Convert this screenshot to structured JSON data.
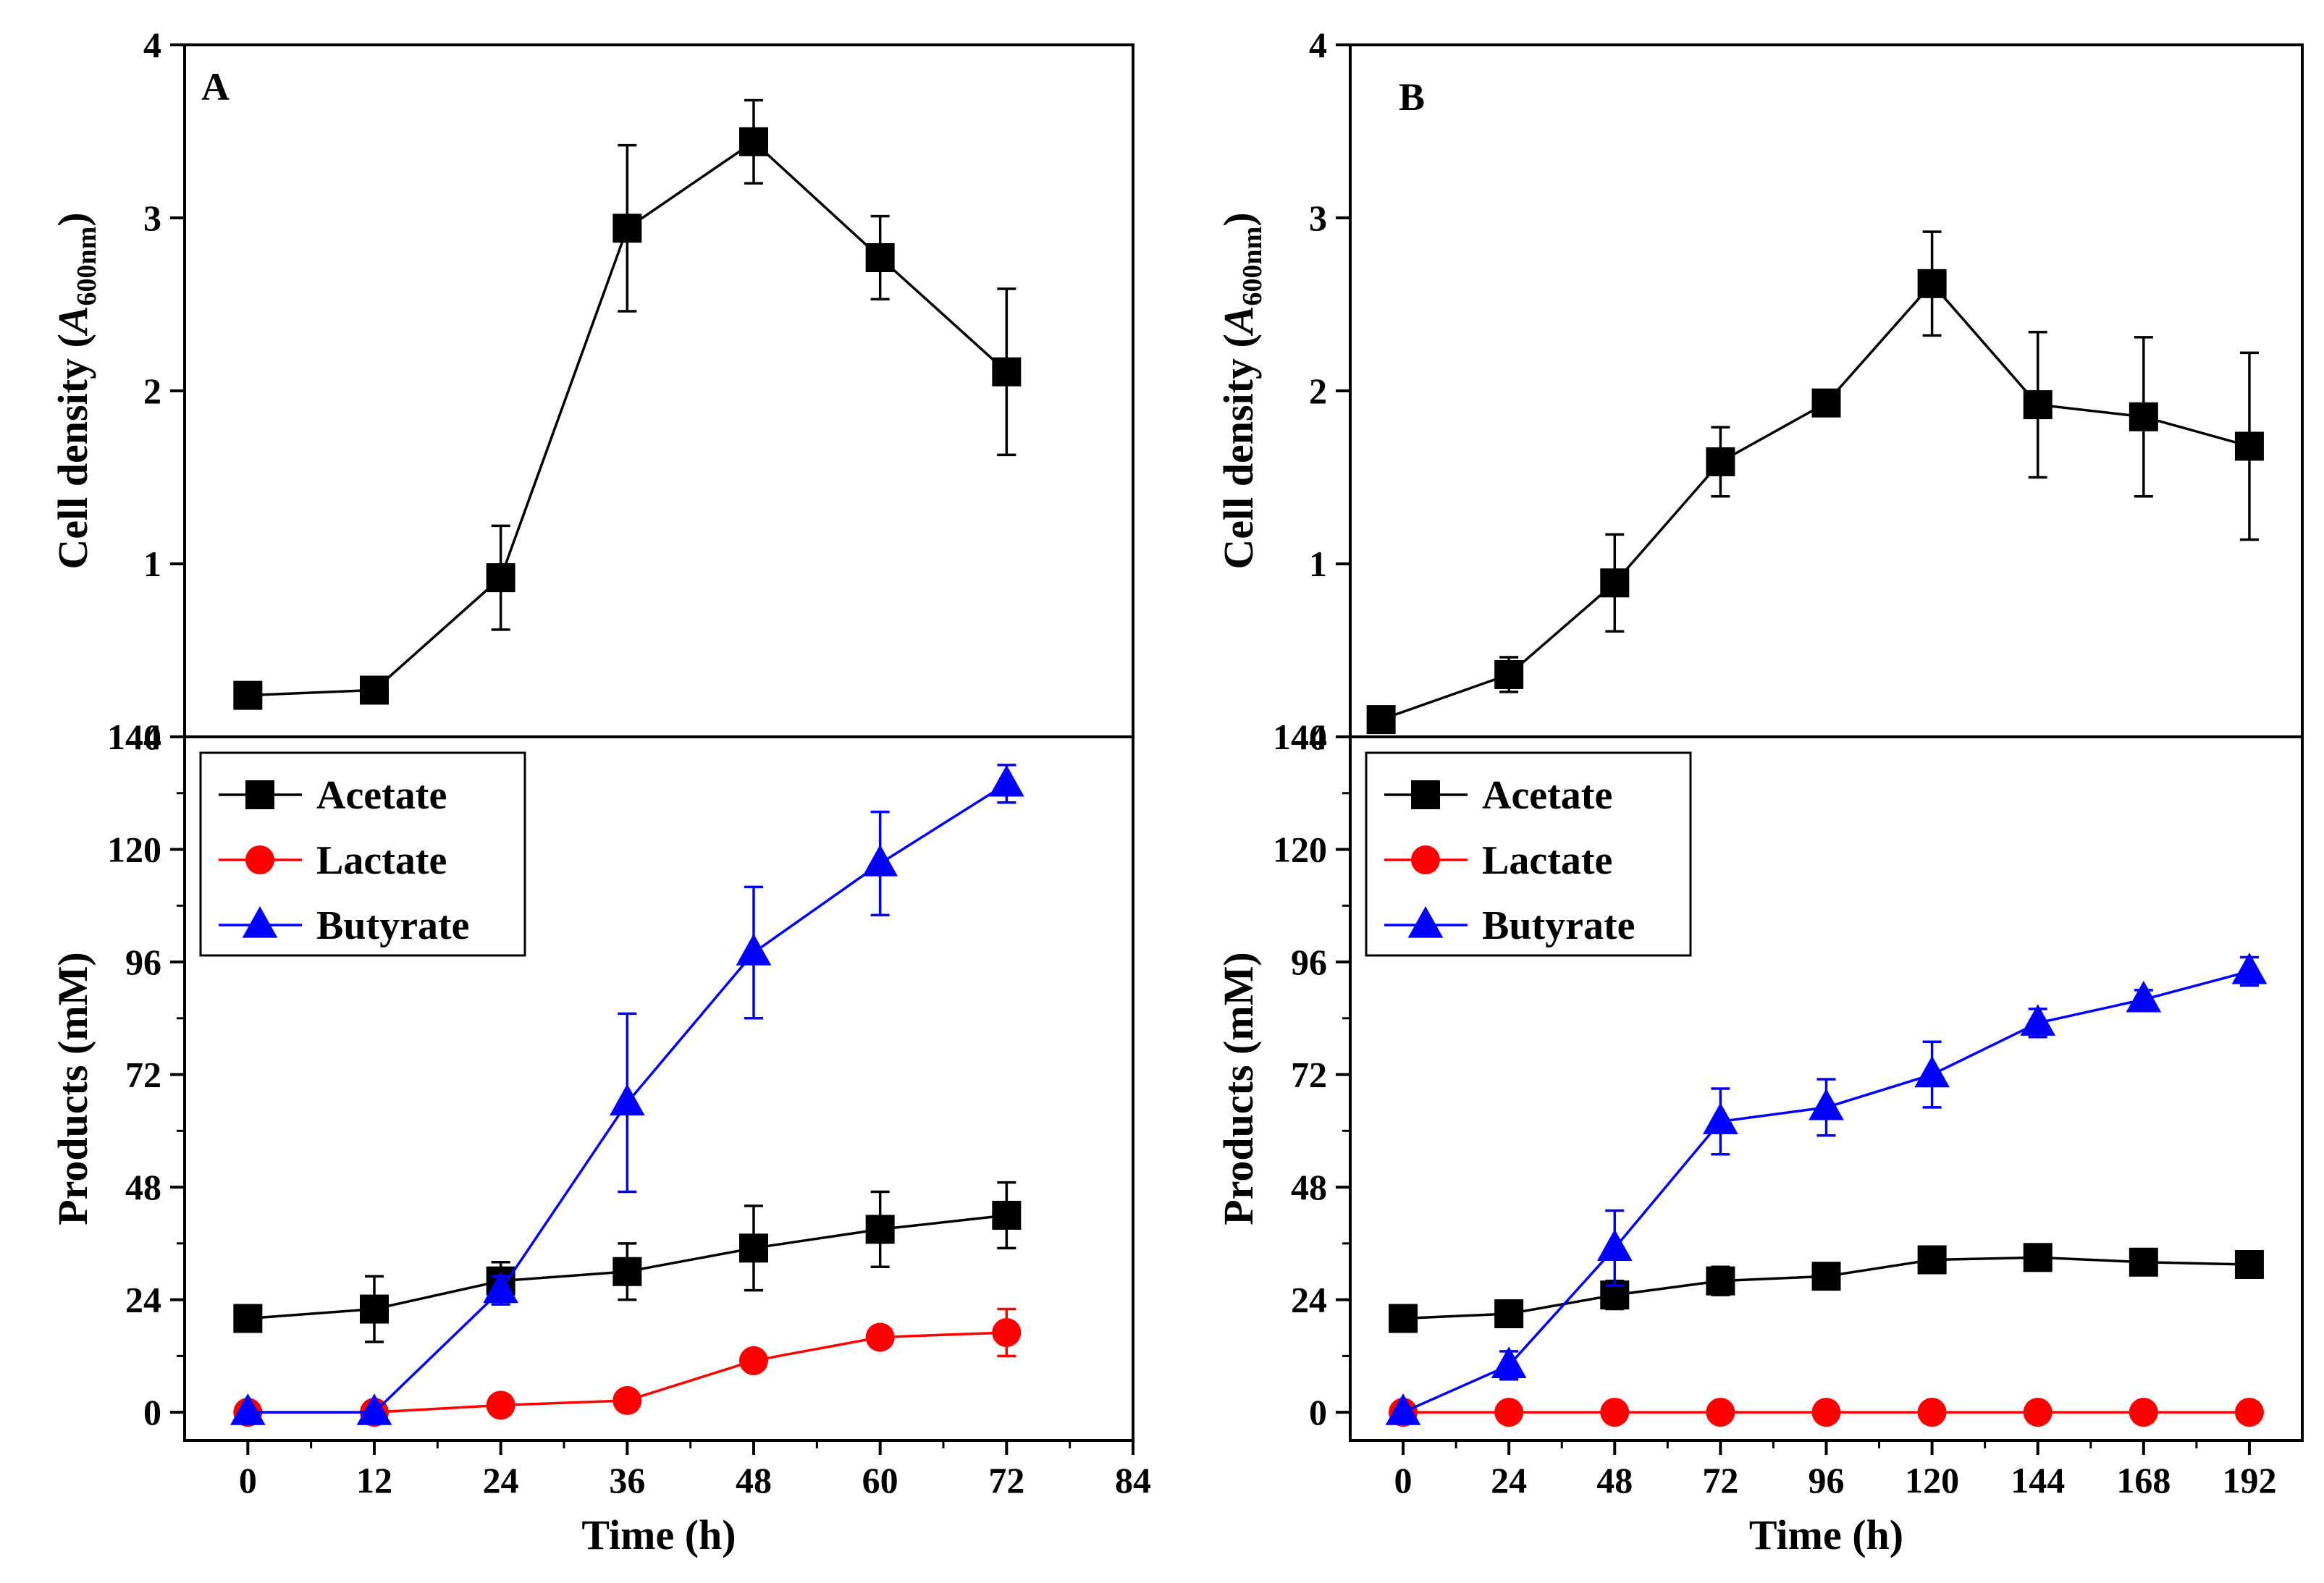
{
  "chart_data": [
    {
      "panel": "A",
      "subplot": "top",
      "type": "line",
      "ylabel": "Cell density (A600nm)",
      "ylabel_parts": {
        "prefix": "Cell density (",
        "var": "A",
        "sub": "600nm",
        "suffix": ")"
      },
      "ylim": [
        0,
        4
      ],
      "yticks": [
        0,
        1,
        2,
        3,
        4
      ],
      "xlim": [
        -6,
        84
      ],
      "grid": false,
      "series": [
        {
          "name": "Cell density",
          "color": "#000000",
          "marker": "square",
          "x": [
            0,
            12,
            24,
            36,
            48,
            60,
            72
          ],
          "values": [
            0.24,
            0.27,
            0.92,
            2.94,
            3.44,
            2.77,
            2.11
          ],
          "errors": [
            0.03,
            0.03,
            0.3,
            0.48,
            0.24,
            0.24,
            0.48
          ]
        }
      ]
    },
    {
      "panel": "A",
      "subplot": "bottom",
      "type": "line",
      "xlabel": "Time (h)",
      "ylabel": "Products (mM)",
      "ylim": [
        -6,
        144
      ],
      "yticks": [
        0,
        24,
        48,
        72,
        96,
        120,
        144
      ],
      "xlim": [
        -6,
        84
      ],
      "xticks": [
        0,
        12,
        24,
        36,
        48,
        60,
        72,
        84
      ],
      "legend_position": "top-left",
      "grid": false,
      "series": [
        {
          "name": "Acetate",
          "color": "#000000",
          "marker": "square",
          "x": [
            0,
            12,
            24,
            36,
            48,
            60,
            72
          ],
          "values": [
            20,
            22,
            28,
            30,
            35,
            39,
            42
          ],
          "errors": [
            1,
            7,
            4,
            6,
            9,
            8,
            7
          ]
        },
        {
          "name": "Lactate",
          "color": "#ff0000",
          "marker": "circle",
          "x": [
            0,
            12,
            24,
            36,
            48,
            60,
            72
          ],
          "values": [
            0,
            0,
            1.5,
            2.5,
            11,
            16,
            17
          ],
          "errors": [
            0,
            0,
            0,
            0,
            0,
            0,
            5
          ]
        },
        {
          "name": "Butyrate",
          "color": "#0000ff",
          "marker": "triangle",
          "x": [
            0,
            12,
            24,
            36,
            48,
            60,
            72
          ],
          "values": [
            0,
            0,
            26,
            66,
            98,
            117,
            134
          ],
          "errors": [
            0,
            0,
            3,
            19,
            14,
            11,
            4
          ]
        }
      ]
    },
    {
      "panel": "B",
      "subplot": "top",
      "type": "line",
      "ylabel": "Cell density (A600nm)",
      "ylabel_parts": {
        "prefix": "Cell density (",
        "var": "A",
        "sub": "600nm",
        "suffix": ")"
      },
      "ylim": [
        0,
        4
      ],
      "yticks": [
        0,
        1,
        2,
        3,
        4
      ],
      "xlim": [
        -12,
        204
      ],
      "grid": false,
      "series": [
        {
          "name": "Cell density",
          "color": "#000000",
          "marker": "square",
          "x": [
            -5,
            24,
            48,
            72,
            96,
            120,
            144,
            168,
            192
          ],
          "values": [
            0.1,
            0.36,
            0.89,
            1.59,
            1.93,
            2.62,
            1.92,
            1.85,
            1.68
          ],
          "errors": [
            0.02,
            0.1,
            0.28,
            0.2,
            0.04,
            0.3,
            0.42,
            0.46,
            0.54
          ]
        }
      ]
    },
    {
      "panel": "B",
      "subplot": "bottom",
      "type": "line",
      "xlabel": "Time (h)",
      "ylabel": "Products (mM)",
      "ylim": [
        -6,
        144
      ],
      "yticks": [
        0,
        24,
        48,
        72,
        96,
        120,
        144
      ],
      "xlim": [
        -12,
        204
      ],
      "xticks": [
        0,
        24,
        48,
        72,
        96,
        120,
        144,
        168,
        192
      ],
      "legend_position": "top-left",
      "grid": false,
      "series": [
        {
          "name": "Acetate",
          "color": "#000000",
          "marker": "square",
          "x": [
            0,
            24,
            48,
            72,
            96,
            120,
            144,
            168,
            192
          ],
          "values": [
            20,
            21,
            25,
            28,
            29,
            32.5,
            33,
            32,
            31.5
          ],
          "errors": [
            1,
            1,
            3,
            3,
            1,
            2,
            1,
            2,
            1
          ]
        },
        {
          "name": "Lactate",
          "color": "#ff0000",
          "marker": "circle",
          "x": [
            0,
            24,
            48,
            72,
            96,
            120,
            144,
            168,
            192
          ],
          "values": [
            0,
            0,
            0,
            0,
            0,
            0,
            0,
            0,
            0
          ],
          "errors": [
            0,
            0,
            0,
            0,
            0,
            0,
            0,
            0,
            0
          ]
        },
        {
          "name": "Butyrate",
          "color": "#0000ff",
          "marker": "triangle",
          "x": [
            0,
            24,
            48,
            72,
            96,
            120,
            144,
            168,
            192
          ],
          "values": [
            0,
            10,
            35,
            62,
            65,
            72,
            83,
            88,
            94
          ],
          "errors": [
            0,
            3,
            8,
            7,
            6,
            7,
            3,
            2,
            3
          ]
        }
      ]
    }
  ]
}
